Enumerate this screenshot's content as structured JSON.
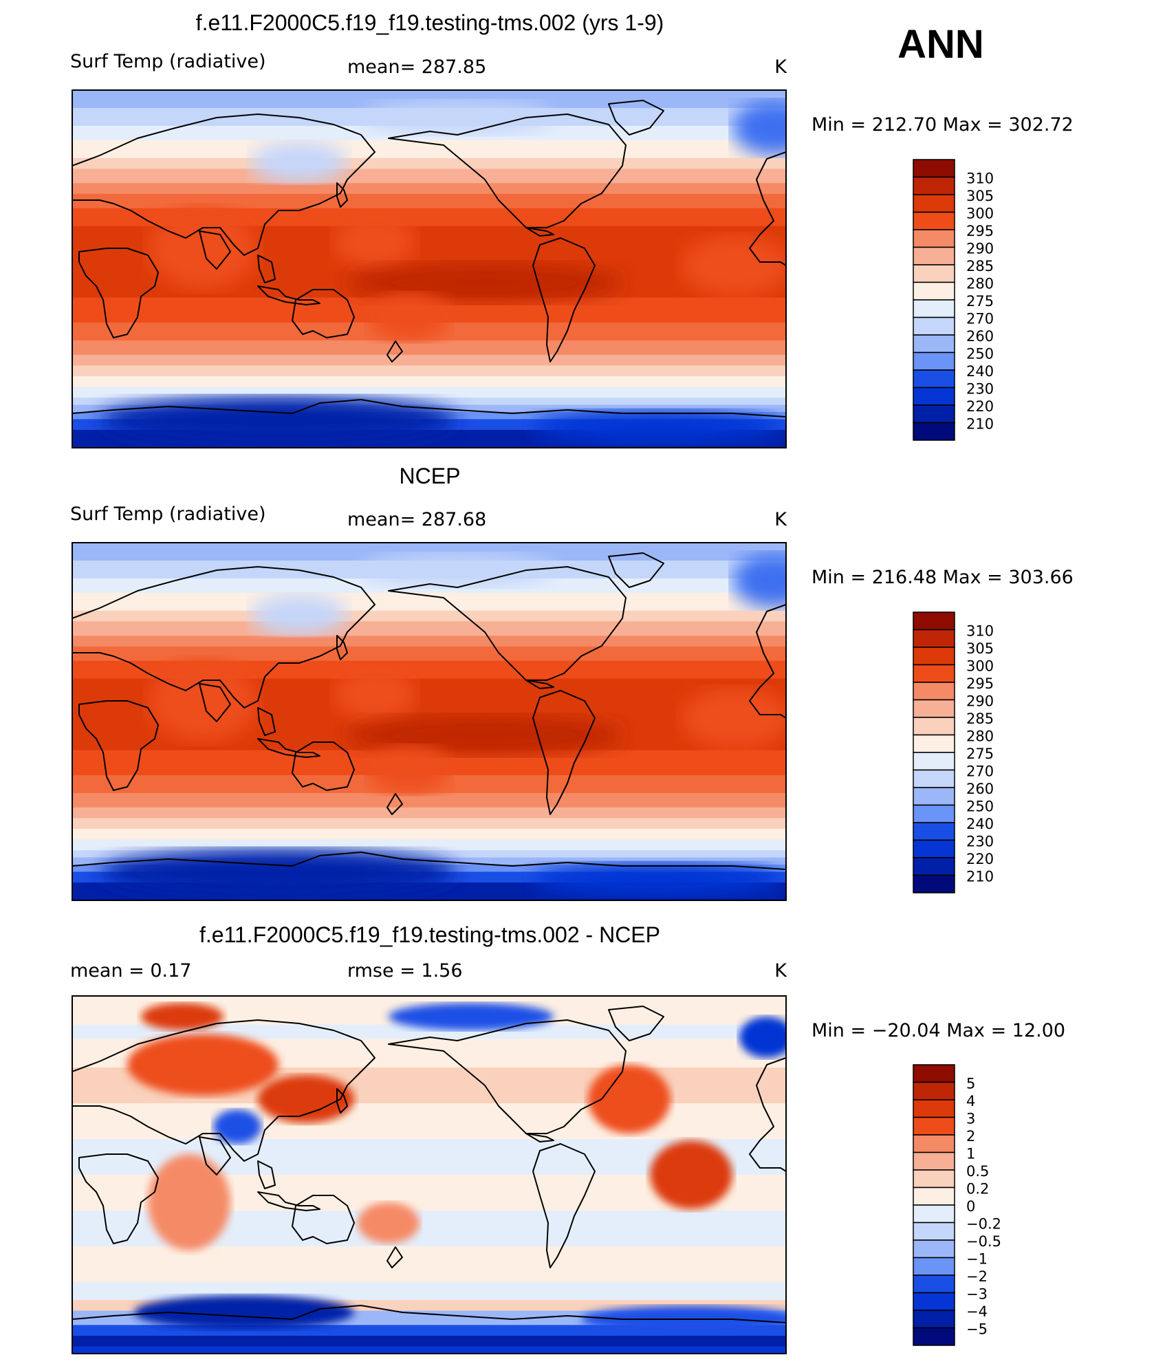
{
  "season": "ANN",
  "colors": {
    "temp_fills": [
      "#000a7a",
      "#0020a8",
      "#0535d4",
      "#1a4fe6",
      "#3c6ff0",
      "#6a94f5",
      "#9bb7f8",
      "#c4d6fa",
      "#e4eefb",
      "#fdefe3",
      "#f9d1bc",
      "#f7b095",
      "#f58a66",
      "#f26a3c",
      "#ee4d1a",
      "#dc3a08",
      "#bf2606",
      "#8e0c00"
    ],
    "diff_fills": [
      "#000a7a",
      "#0020a8",
      "#0535d4",
      "#1a4fe6",
      "#3c6ff0",
      "#6a94f5",
      "#9bb7f8",
      "#c4d6fa",
      "#e4eefb",
      "#fdefe3",
      "#f9d1bc",
      "#f7b095",
      "#f58a66",
      "#f26a3c",
      "#ee4d1a",
      "#dc3a08",
      "#bf2606",
      "#8e0c00"
    ],
    "land_line": "#000000"
  },
  "chart_data": [
    {
      "type": "heatmap",
      "title": "f.e11.F2000C5.f19_f19.testing-tms.002 (yrs 1-9)",
      "left_label": "Surf Temp (radiative)",
      "mid_label": "mean=  287.85",
      "units": "K",
      "minmax": "Min  =  212.70  Max  =  302.72",
      "mean": 287.85,
      "min": 212.7,
      "max": 302.72,
      "colorbar_labels": [
        "310",
        "305",
        "300",
        "295",
        "290",
        "285",
        "280",
        "275",
        "270",
        "260",
        "250",
        "240",
        "230",
        "220",
        "210"
      ]
    },
    {
      "type": "heatmap",
      "title": "NCEP",
      "left_label": "Surf Temp (radiative)",
      "mid_label": "mean=  287.68",
      "units": "K",
      "minmax": "Min  =  216.48  Max  =  303.66",
      "mean": 287.68,
      "min": 216.48,
      "max": 303.66,
      "colorbar_labels": [
        "310",
        "305",
        "300",
        "295",
        "290",
        "285",
        "280",
        "275",
        "270",
        "260",
        "250",
        "240",
        "230",
        "220",
        "210"
      ]
    },
    {
      "type": "heatmap",
      "title": "f.e11.F2000C5.f19_f19.testing-tms.002 - NCEP",
      "left_label": "mean =     0.17",
      "mid_label": "rmse =     1.56",
      "units": "K",
      "minmax": "Min  =  −20.04  Max  =    12.00",
      "mean": 0.17,
      "rmse": 1.56,
      "min": -20.04,
      "max": 12.0,
      "colorbar_labels": [
        "5",
        "4",
        "3",
        "2",
        "1",
        "0.5",
        "0.2",
        "0",
        "−0.2",
        "−0.5",
        "−1",
        "−2",
        "−3",
        "−4",
        "−5"
      ]
    }
  ]
}
